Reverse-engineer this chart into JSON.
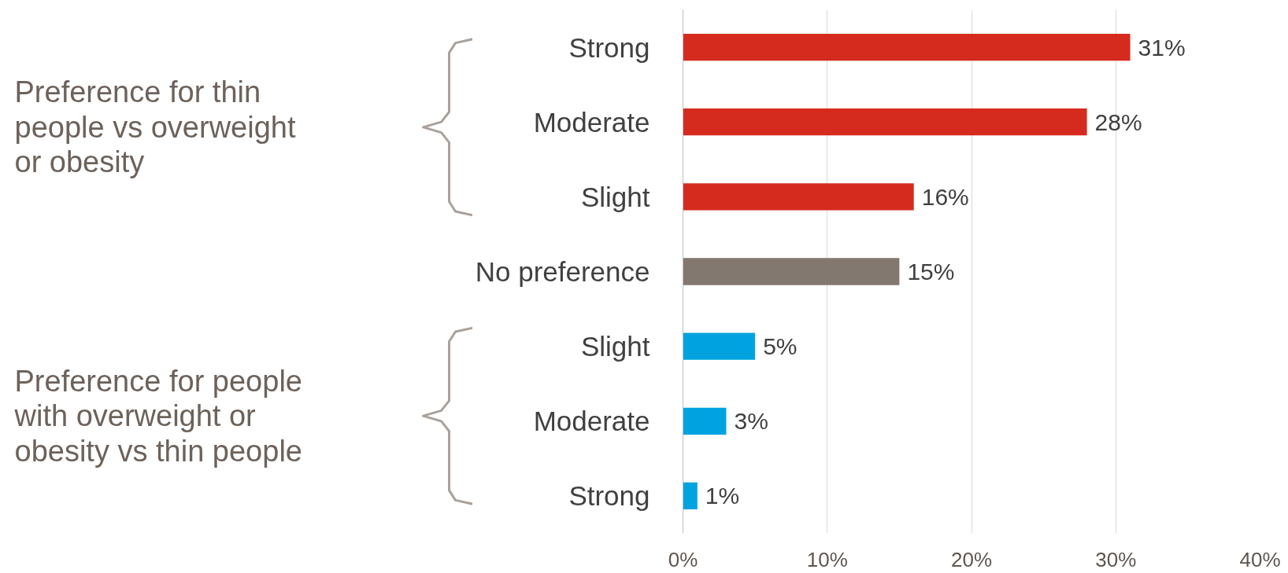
{
  "chart_data": {
    "type": "bar",
    "orientation": "horizontal",
    "categories": [
      "Strong",
      "Moderate",
      "Slight",
      "No preference",
      "Slight",
      "Moderate",
      "Strong"
    ],
    "values": [
      31,
      28,
      16,
      15,
      5,
      3,
      1
    ],
    "colors": [
      "#d52b1e",
      "#d52b1e",
      "#d52b1e",
      "#82786f",
      "#00a3e0",
      "#00a3e0",
      "#00a3e0"
    ],
    "value_labels": [
      "31%",
      "28%",
      "16%",
      "15%",
      "5%",
      "3%",
      "1%"
    ],
    "xlim": [
      0,
      40
    ],
    "xticks": [
      {
        "value": 0,
        "label": "0%"
      },
      {
        "value": 10,
        "label": "10%"
      },
      {
        "value": 20,
        "label": "20%"
      },
      {
        "value": 30,
        "label": "30%"
      },
      {
        "value": 40,
        "label": "40%"
      }
    ],
    "grid": "x",
    "annotations": [
      "Preference for thin people vs overweight or obesity",
      "Preference for people with overweight or obesity vs thin people"
    ]
  }
}
